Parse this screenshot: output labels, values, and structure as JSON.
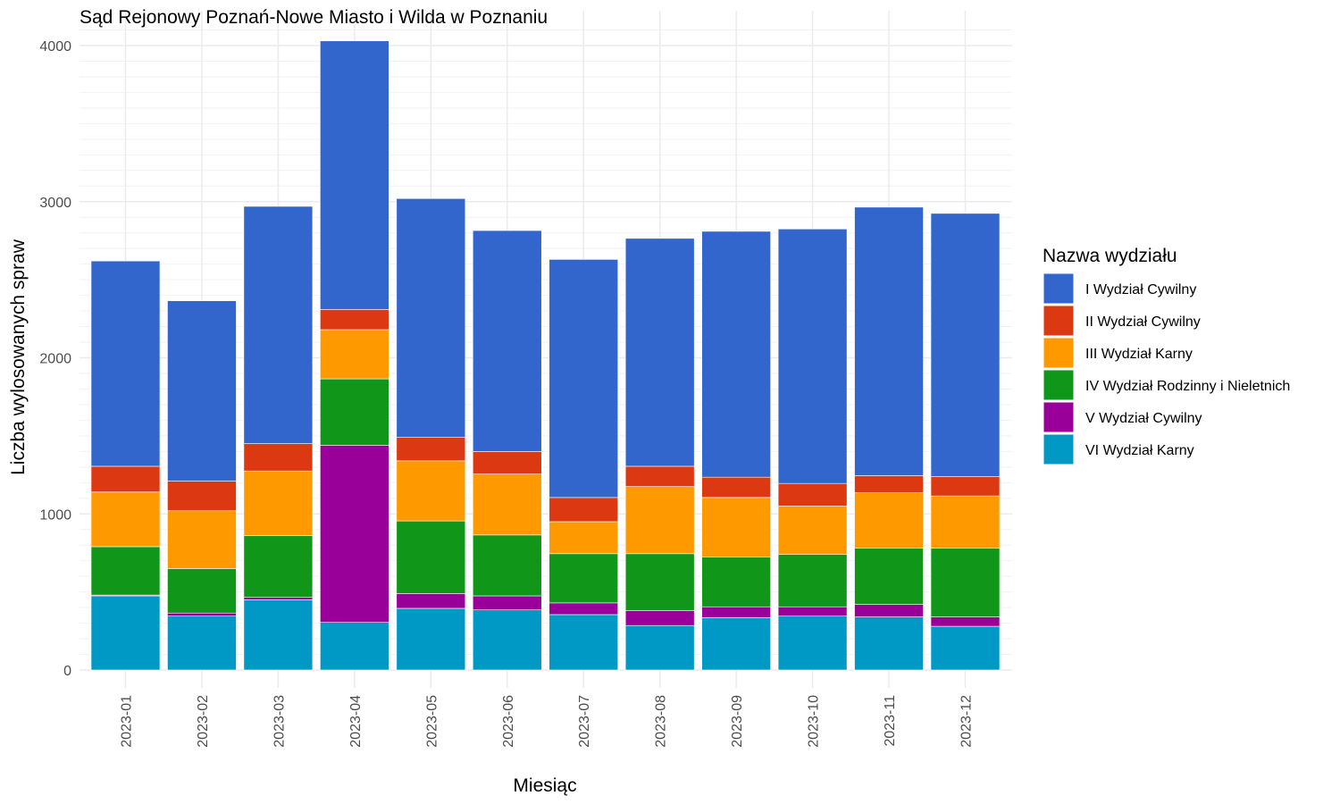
{
  "chart_data": {
    "type": "bar",
    "stacked": true,
    "title": "Sąd Rejonowy Poznań-Nowe Miasto i Wilda w Poznaniu",
    "xlabel": "Miesiąc",
    "ylabel": "Liczba wylosowanych spraw",
    "ylim": [
      0,
      4200
    ],
    "yticks": [
      "0",
      "1000",
      "2000",
      "3000",
      "4000"
    ],
    "grid": true,
    "legend_title": "Nazwa wydziału",
    "legend_position": "right",
    "categories": [
      "2023-01",
      "2023-02",
      "2023-03",
      "2023-04",
      "2023-05",
      "2023-06",
      "2023-07",
      "2023-08",
      "2023-09",
      "2023-10",
      "2023-11",
      "2023-12"
    ],
    "series": [
      {
        "name": "VI Wydział Karny",
        "color": "#0099C6",
        "values": [
          475,
          345,
          450,
          305,
          395,
          385,
          355,
          285,
          335,
          345,
          340,
          280
        ]
      },
      {
        "name": "V Wydział Cywilny",
        "color": "#990099",
        "values": [
          5,
          20,
          15,
          1135,
          95,
          90,
          75,
          95,
          70,
          60,
          80,
          60
        ]
      },
      {
        "name": "IV Wydział Rodzinny i Nieletnich",
        "color": "#109618",
        "values": [
          310,
          285,
          395,
          425,
          465,
          390,
          315,
          365,
          320,
          335,
          360,
          440
        ]
      },
      {
        "name": "III Wydział Karny",
        "color": "#FF9900",
        "values": [
          350,
          370,
          415,
          315,
          385,
          390,
          205,
          430,
          380,
          310,
          355,
          335
        ]
      },
      {
        "name": "II Wydział Cywilny",
        "color": "#DC3912",
        "values": [
          165,
          190,
          175,
          130,
          150,
          145,
          155,
          130,
          130,
          145,
          110,
          125
        ]
      },
      {
        "name": "I Wydział Cywilny",
        "color": "#3366CC",
        "values": [
          1315,
          1155,
          1520,
          1720,
          1530,
          1415,
          1525,
          1460,
          1575,
          1630,
          1720,
          1685
        ]
      }
    ],
    "legend_order": [
      "I Wydział Cywilny",
      "II Wydział Cywilny",
      "III Wydział Karny",
      "IV Wydział Rodzinny i Nieletnich",
      "V Wydział Cywilny",
      "VI Wydział Karny"
    ]
  }
}
